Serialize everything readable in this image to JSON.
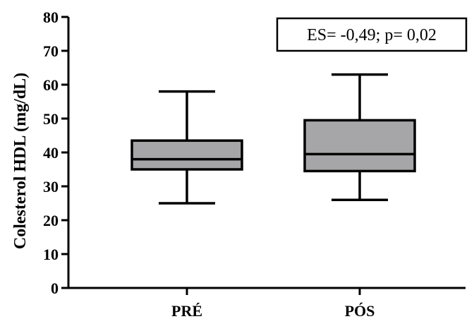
{
  "chart_data": {
    "type": "boxplot",
    "ylabel": "Colesterol HDL (mg/dL)",
    "xlabel": "",
    "ylim": [
      0,
      80
    ],
    "yticks": [
      "0",
      "10",
      "20",
      "30",
      "40",
      "50",
      "60",
      "70",
      "80"
    ],
    "categories": [
      "PRÉ",
      "PÓS"
    ],
    "boxes": [
      {
        "category": "PRÉ",
        "min": 25,
        "q1": 35,
        "median": 38,
        "q3": 43.5,
        "max": 58
      },
      {
        "category": "PÓS",
        "min": 26,
        "q1": 34.5,
        "median": 39.5,
        "q3": 49.5,
        "max": 63
      }
    ],
    "annotation": "ES= -0,49; p= 0,02",
    "box_color": "#a6a6a8",
    "line_color": "#000000",
    "grid": false,
    "legend": "none"
  }
}
